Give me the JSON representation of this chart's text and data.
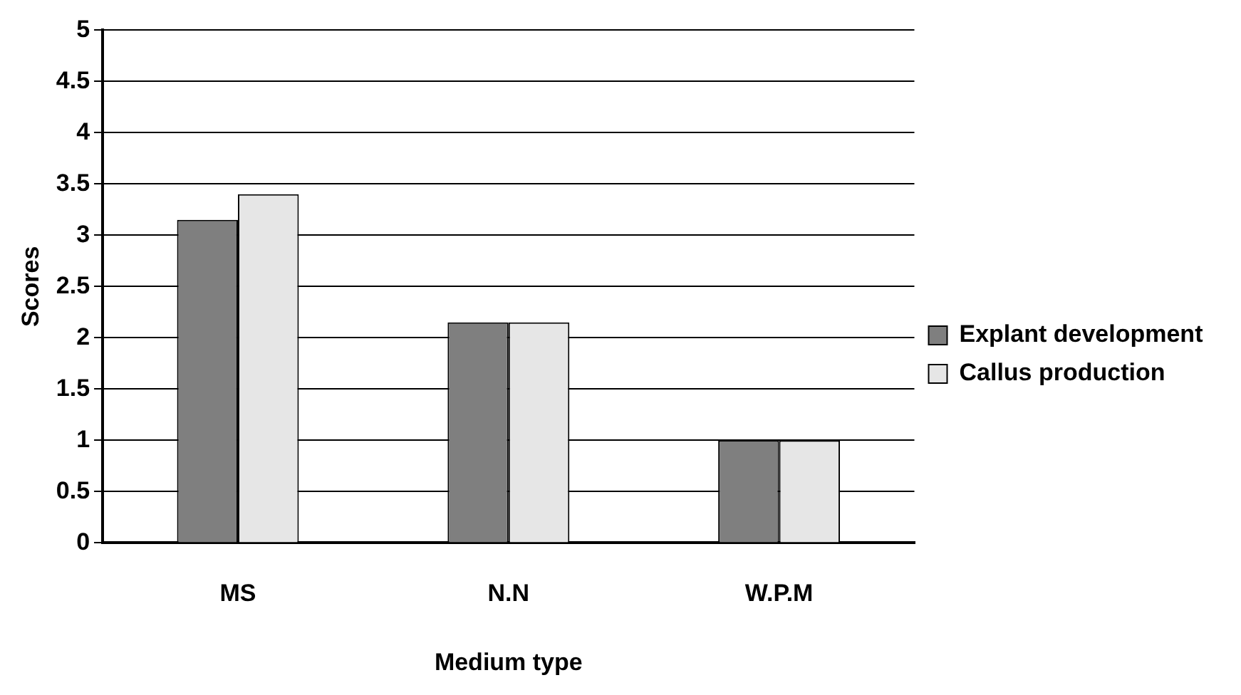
{
  "chart_data": {
    "type": "bar",
    "xlabel": "Medium type",
    "ylabel": "Scores",
    "categories": [
      "MS",
      "N.N",
      "W.P.M"
    ],
    "series": [
      {
        "name": "Explant development",
        "color": "#7f7f7f",
        "values": [
          3.15,
          2.15,
          1
        ]
      },
      {
        "name": "Callus production",
        "color": "#e6e6e6",
        "values": [
          3.4,
          2.15,
          1
        ]
      }
    ],
    "ylim": [
      0,
      5
    ],
    "yticks": [
      0,
      0.5,
      1,
      1.5,
      2,
      2.5,
      3,
      3.5,
      4,
      4.5,
      5
    ],
    "grid": "y",
    "legend": "right"
  }
}
